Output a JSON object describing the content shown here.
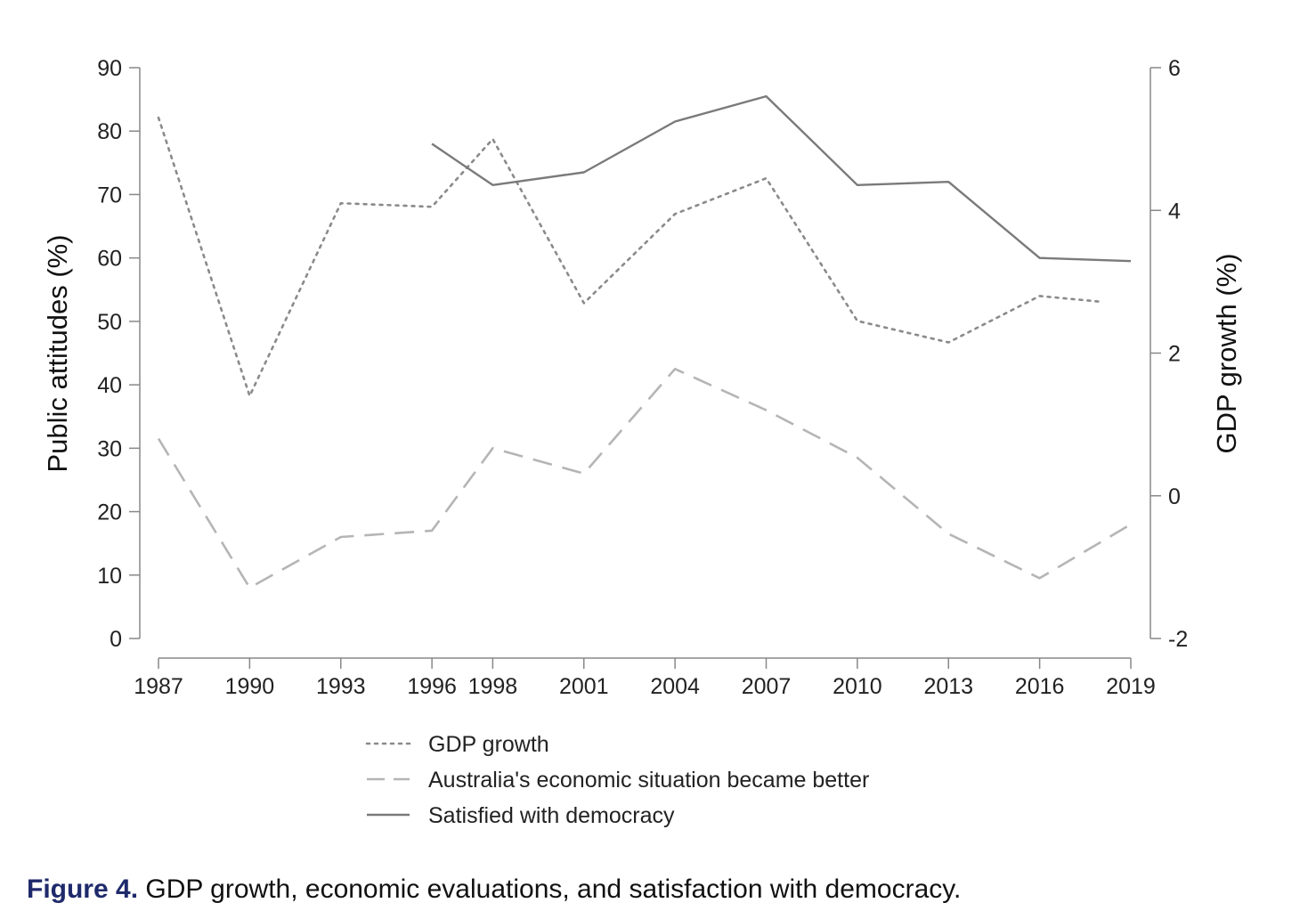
{
  "chart_data": {
    "type": "line",
    "title": "",
    "xlabel": "",
    "ylabel": "Public attitudes (%)",
    "y2label": "GDP growth (%)",
    "categories": [
      "1987",
      "1990",
      "1993",
      "1996",
      "1998",
      "2001",
      "2004",
      "2007",
      "2010",
      "2013",
      "2016",
      "2019"
    ],
    "ylim": [
      0,
      90
    ],
    "y2lim": [
      -2,
      6
    ],
    "yticks": [
      0,
      10,
      20,
      30,
      40,
      50,
      60,
      70,
      80,
      90
    ],
    "y2ticks": [
      -2,
      0,
      2,
      4,
      6
    ],
    "grid": false,
    "legend": "bottom",
    "series": [
      {
        "name": "GDP growth",
        "axis": "right",
        "style": "dotted",
        "color": "#8a8a8a",
        "x": [
          1987,
          1990,
          1993,
          1996,
          1998,
          2001,
          2004,
          2007,
          2010,
          2013,
          2016,
          2018
        ],
        "values": [
          5.3,
          1.4,
          4.1,
          4.05,
          5.0,
          2.7,
          3.95,
          4.45,
          2.45,
          2.15,
          2.8,
          2.72
        ]
      },
      {
        "name": "Australia's economic situation became better",
        "axis": "left",
        "style": "dashed",
        "color": "#b5b5b5",
        "x": [
          1987,
          1990,
          1993,
          1996,
          1998,
          2001,
          2004,
          2007,
          2010,
          2013,
          2016,
          2019
        ],
        "values": [
          31.5,
          8,
          16,
          17,
          30,
          26,
          42.5,
          36,
          28.5,
          16.5,
          9.5,
          18
        ]
      },
      {
        "name": "Satisfied with democracy",
        "axis": "left",
        "style": "solid",
        "color": "#7a7a7a",
        "x": [
          1996,
          1998,
          2001,
          2004,
          2007,
          2010,
          2013,
          2016,
          2019
        ],
        "values": [
          78,
          71.5,
          73.5,
          81.5,
          85.5,
          71.5,
          72,
          60,
          59.5
        ]
      }
    ]
  },
  "caption": {
    "label": "Figure 4.",
    "text": " GDP growth, economic evaluations, and satisfaction with democracy."
  }
}
